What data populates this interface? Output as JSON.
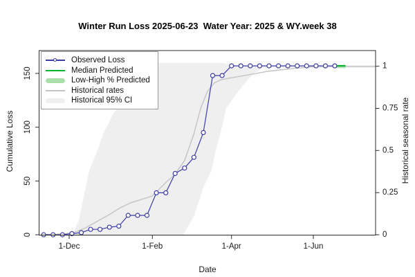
{
  "chart_data": {
    "type": "line",
    "title": "Winter Run Loss 2025-06-23  Water Year: 2025 & WY.week 38",
    "xlabel": "Date",
    "ylabel_left": "Cumulative Loss",
    "ylabel_right": "Historical seasonal rate",
    "x_domain": [
      "2024-11-08",
      "2025-07-17"
    ],
    "ylim_left": [
      0,
      160
    ],
    "ylim_right": [
      0,
      1.03
    ],
    "grid": false,
    "x_ticks": [
      {
        "date": "2024-12-01",
        "label": "1-Dec"
      },
      {
        "date": "2025-02-01",
        "label": "1-Feb"
      },
      {
        "date": "2025-04-01",
        "label": "1-Apr"
      },
      {
        "date": "2025-06-01",
        "label": "1-Jun"
      }
    ],
    "y_ticks_left": [
      {
        "value": 0,
        "label": "0"
      },
      {
        "value": 50,
        "label": "50"
      },
      {
        "value": 100,
        "label": "100"
      },
      {
        "value": 150,
        "label": "150"
      }
    ],
    "y_ticks_right": [
      {
        "value": 0,
        "label": "0"
      },
      {
        "value": 0.25,
        "label": "0.25"
      },
      {
        "value": 0.5,
        "label": "0.5"
      },
      {
        "value": 0.75,
        "label": "0.75"
      },
      {
        "value": 1,
        "label": "1"
      }
    ],
    "series": [
      {
        "name": "Observed Loss",
        "kind": "line_marker",
        "axis": "left",
        "color": "#3b3ba6",
        "points": [
          [
            "2024-11-12",
            0
          ],
          [
            "2024-11-19",
            0
          ],
          [
            "2024-11-26",
            0
          ],
          [
            "2024-12-03",
            1
          ],
          [
            "2024-12-10",
            2
          ],
          [
            "2024-12-17",
            5
          ],
          [
            "2024-12-24",
            5
          ],
          [
            "2024-12-31",
            7
          ],
          [
            "2025-01-07",
            8
          ],
          [
            "2025-01-14",
            18
          ],
          [
            "2025-01-21",
            18
          ],
          [
            "2025-01-28",
            18
          ],
          [
            "2025-02-04",
            39
          ],
          [
            "2025-02-11",
            39
          ],
          [
            "2025-02-18",
            57
          ],
          [
            "2025-02-25",
            62
          ],
          [
            "2025-03-04",
            72
          ],
          [
            "2025-03-11",
            95
          ],
          [
            "2025-03-18",
            148
          ],
          [
            "2025-03-25",
            148
          ],
          [
            "2025-04-01",
            157
          ],
          [
            "2025-04-08",
            157
          ],
          [
            "2025-04-15",
            157
          ],
          [
            "2025-04-22",
            157
          ],
          [
            "2025-04-29",
            157
          ],
          [
            "2025-05-06",
            157
          ],
          [
            "2025-05-13",
            157
          ],
          [
            "2025-05-20",
            157
          ],
          [
            "2025-05-27",
            157
          ],
          [
            "2025-06-03",
            157
          ],
          [
            "2025-06-10",
            157
          ],
          [
            "2025-06-17",
            157
          ]
        ]
      },
      {
        "name": "Median Predicted",
        "kind": "line",
        "axis": "left",
        "color": "#00b22d",
        "points": [
          [
            "2025-06-17",
            157
          ],
          [
            "2025-06-25",
            157
          ]
        ]
      },
      {
        "name": "Low-High % Predicted",
        "kind": "band",
        "axis": "left",
        "color": "#aadfaa",
        "points": [
          [
            "2025-06-17",
            155,
            158
          ],
          [
            "2025-06-25",
            155,
            158
          ]
        ]
      },
      {
        "name": "Historical rates",
        "kind": "line",
        "axis": "right",
        "color": "#c3c3c3",
        "points": [
          [
            "2024-11-10",
            0
          ],
          [
            "2024-11-27",
            0.005
          ],
          [
            "2024-12-05",
            0.015
          ],
          [
            "2024-12-13",
            0.04
          ],
          [
            "2024-12-22",
            0.08
          ],
          [
            "2024-12-31",
            0.12
          ],
          [
            "2025-01-08",
            0.16
          ],
          [
            "2025-01-16",
            0.19
          ],
          [
            "2025-01-24",
            0.21
          ],
          [
            "2025-02-01",
            0.23
          ],
          [
            "2025-02-11",
            0.31
          ],
          [
            "2025-02-18",
            0.36
          ],
          [
            "2025-02-25",
            0.44
          ],
          [
            "2025-03-04",
            0.6
          ],
          [
            "2025-03-09",
            0.75
          ],
          [
            "2025-03-14",
            0.85
          ],
          [
            "2025-03-19",
            0.9
          ],
          [
            "2025-03-24",
            0.92
          ],
          [
            "2025-03-31",
            0.93
          ],
          [
            "2025-04-14",
            0.95
          ],
          [
            "2025-04-28",
            0.97
          ],
          [
            "2025-05-15",
            0.985
          ],
          [
            "2025-06-04",
            1.0
          ],
          [
            "2025-07-17",
            1.0
          ]
        ]
      },
      {
        "name": "Historical 95% CI",
        "kind": "ci_band",
        "axis": "right",
        "color": "#efefef",
        "upper": [
          [
            "2024-12-03",
            0
          ],
          [
            "2024-12-08",
            0.08
          ],
          [
            "2024-12-13",
            0.27
          ],
          [
            "2024-12-16",
            0.38
          ],
          [
            "2024-12-22",
            0.5
          ],
          [
            "2024-12-27",
            0.61
          ],
          [
            "2025-01-03",
            0.72
          ],
          [
            "2025-01-10",
            0.8
          ],
          [
            "2025-01-16",
            0.89
          ],
          [
            "2025-01-25",
            0.97
          ],
          [
            "2025-02-03",
            1.02
          ],
          [
            "2025-03-25",
            1.02
          ],
          [
            "2025-04-05",
            1.005
          ],
          [
            "2025-07-17",
            1.005
          ]
        ],
        "lower": [
          [
            "2024-12-03",
            0
          ],
          [
            "2025-02-24",
            0
          ],
          [
            "2025-03-04",
            0.11
          ],
          [
            "2025-03-11",
            0.28
          ],
          [
            "2025-03-17",
            0.38
          ],
          [
            "2025-03-20",
            0.49
          ],
          [
            "2025-03-24",
            0.61
          ],
          [
            "2025-03-28",
            0.75
          ],
          [
            "2025-04-03",
            0.82
          ],
          [
            "2025-04-11",
            0.9
          ],
          [
            "2025-04-18",
            0.96
          ],
          [
            "2025-04-24",
            0.99
          ],
          [
            "2025-07-17",
            0.99
          ]
        ]
      }
    ],
    "legend": {
      "position": "top-left",
      "items": [
        {
          "label": "Observed Loss",
          "swatch": "line-marker",
          "color": "#3b3ba6"
        },
        {
          "label": "Median Predicted",
          "swatch": "line",
          "color": "#00b22d"
        },
        {
          "label": "Low-High % Predicted",
          "swatch": "band",
          "color": "#aadfaa"
        },
        {
          "label": "Historical rates",
          "swatch": "line",
          "color": "#c3c3c3"
        },
        {
          "label": "Historical 95% CI",
          "swatch": "band",
          "color": "#efefef"
        }
      ]
    }
  }
}
